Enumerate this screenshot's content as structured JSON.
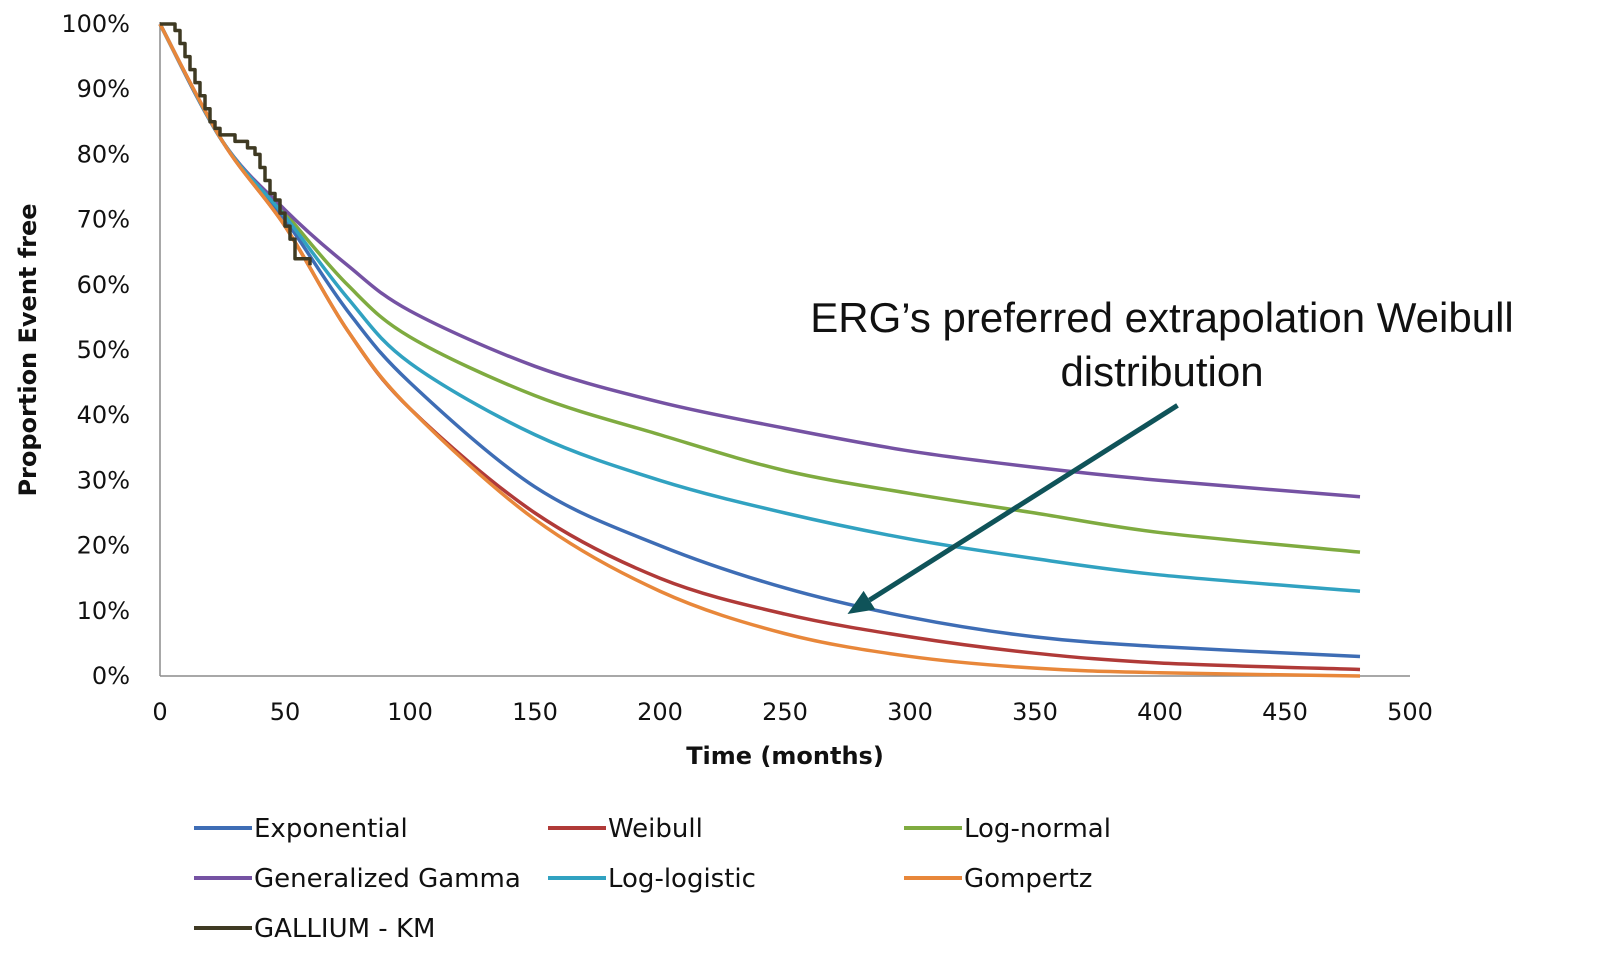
{
  "chart_data": {
    "type": "line",
    "xlabel": "Time (months)",
    "ylabel": "Proportion Event free",
    "xlim": [
      0,
      500
    ],
    "ylim": [
      0,
      100
    ],
    "x_ticks": [
      0,
      50,
      100,
      150,
      200,
      250,
      300,
      350,
      400,
      450,
      500
    ],
    "x_tick_labels": [
      "0",
      "50",
      "100",
      "150",
      "200",
      "250",
      "300",
      "350",
      "400",
      "450",
      "500"
    ],
    "y_ticks": [
      0,
      10,
      20,
      30,
      40,
      50,
      60,
      70,
      80,
      90,
      100
    ],
    "y_tick_labels": [
      "0%",
      "10%",
      "20%",
      "30%",
      "40%",
      "50%",
      "60%",
      "70%",
      "80%",
      "90%",
      "100%"
    ],
    "grid": false,
    "legend_position": "bottom",
    "series": [
      {
        "name": "Exponential",
        "color": "#3e6db5",
        "style": "smooth",
        "points": [
          [
            0,
            100
          ],
          [
            25,
            82
          ],
          [
            50,
            70
          ],
          [
            75,
            56
          ],
          [
            100,
            45
          ],
          [
            150,
            29
          ],
          [
            200,
            20
          ],
          [
            250,
            13.5
          ],
          [
            300,
            9
          ],
          [
            350,
            6
          ],
          [
            400,
            4.5
          ],
          [
            480,
            3
          ]
        ]
      },
      {
        "name": "Weibull",
        "color": "#b03a38",
        "style": "smooth",
        "points": [
          [
            0,
            100
          ],
          [
            25,
            82
          ],
          [
            50,
            69
          ],
          [
            75,
            53
          ],
          [
            100,
            41
          ],
          [
            150,
            25
          ],
          [
            200,
            15
          ],
          [
            250,
            9.5
          ],
          [
            300,
            6
          ],
          [
            350,
            3.5
          ],
          [
            400,
            2
          ],
          [
            480,
            1
          ]
        ]
      },
      {
        "name": "Log-normal",
        "color": "#7fab40",
        "style": "smooth",
        "points": [
          [
            0,
            100
          ],
          [
            25,
            82
          ],
          [
            50,
            71
          ],
          [
            75,
            60
          ],
          [
            100,
            52
          ],
          [
            150,
            43
          ],
          [
            200,
            37
          ],
          [
            250,
            31.5
          ],
          [
            300,
            28
          ],
          [
            350,
            25
          ],
          [
            400,
            22
          ],
          [
            480,
            19
          ]
        ]
      },
      {
        "name": "Generalized Gamma",
        "color": "#7552a3",
        "style": "smooth",
        "points": [
          [
            0,
            100
          ],
          [
            25,
            82
          ],
          [
            50,
            71.5
          ],
          [
            75,
            63
          ],
          [
            100,
            56
          ],
          [
            150,
            47.5
          ],
          [
            200,
            42
          ],
          [
            250,
            38
          ],
          [
            300,
            34.5
          ],
          [
            350,
            32
          ],
          [
            400,
            30
          ],
          [
            480,
            27.5
          ]
        ]
      },
      {
        "name": "Log-logistic",
        "color": "#31a2c1",
        "style": "smooth",
        "points": [
          [
            0,
            100
          ],
          [
            25,
            82
          ],
          [
            50,
            70.5
          ],
          [
            75,
            58
          ],
          [
            100,
            48
          ],
          [
            150,
            37
          ],
          [
            200,
            30
          ],
          [
            250,
            25
          ],
          [
            300,
            21
          ],
          [
            350,
            18
          ],
          [
            400,
            15.5
          ],
          [
            480,
            13
          ]
        ]
      },
      {
        "name": "Gompertz",
        "color": "#e8873a",
        "style": "smooth",
        "points": [
          [
            0,
            100
          ],
          [
            25,
            82
          ],
          [
            50,
            69
          ],
          [
            75,
            53
          ],
          [
            100,
            41
          ],
          [
            150,
            24
          ],
          [
            200,
            13
          ],
          [
            250,
            6.5
          ],
          [
            300,
            3
          ],
          [
            350,
            1.2
          ],
          [
            400,
            0.5
          ],
          [
            480,
            0
          ]
        ]
      },
      {
        "name": "GALLIUM - KM",
        "color": "#3f3a23",
        "style": "step",
        "points": [
          [
            0,
            100
          ],
          [
            4,
            100
          ],
          [
            6,
            99
          ],
          [
            8,
            97
          ],
          [
            10,
            95
          ],
          [
            12,
            93
          ],
          [
            14,
            91
          ],
          [
            16,
            89
          ],
          [
            18,
            87
          ],
          [
            20,
            85
          ],
          [
            22,
            84
          ],
          [
            24,
            83
          ],
          [
            28,
            83
          ],
          [
            30,
            82
          ],
          [
            32,
            82
          ],
          [
            35,
            81
          ],
          [
            38,
            80
          ],
          [
            40,
            78
          ],
          [
            42,
            76
          ],
          [
            44,
            74
          ],
          [
            46,
            73
          ],
          [
            48,
            71
          ],
          [
            50,
            69
          ],
          [
            52,
            67
          ],
          [
            54,
            64
          ],
          [
            58,
            64
          ],
          [
            60,
            63
          ]
        ]
      }
    ],
    "annotation": {
      "text_lines": [
        "ERG’s preferred extrapolation Weibull",
        "distribution"
      ],
      "arrow_from": [
        407,
        41.5
      ],
      "arrow_to": [
        275,
        9.5
      ],
      "arrow_color": "#0f5359"
    },
    "legend": [
      [
        "Exponential",
        "Weibull",
        "Log-normal"
      ],
      [
        "Generalized Gamma",
        "Log-logistic",
        "Gompertz"
      ],
      [
        "GALLIUM - KM"
      ]
    ]
  }
}
